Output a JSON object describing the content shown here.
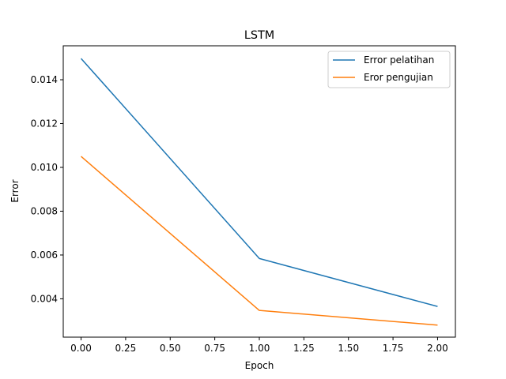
{
  "chart_data": {
    "type": "line",
    "title": "LSTM",
    "xlabel": "Epoch",
    "ylabel": "Error",
    "x": [
      0,
      1,
      2
    ],
    "xlim": [
      -0.1,
      2.1
    ],
    "ylim": [
      0.00225,
      0.01555
    ],
    "xticks": [
      0.0,
      0.25,
      0.5,
      0.75,
      1.0,
      1.25,
      1.5,
      1.75,
      2.0
    ],
    "xtick_labels": [
      "0.00",
      "0.25",
      "0.50",
      "0.75",
      "1.00",
      "1.25",
      "1.50",
      "1.75",
      "2.00"
    ],
    "yticks": [
      0.004,
      0.006,
      0.008,
      0.01,
      0.012,
      0.014
    ],
    "ytick_labels": [
      "0.004",
      "0.006",
      "0.008",
      "0.010",
      "0.012",
      "0.014"
    ],
    "legend_position": "top-right",
    "grid": false,
    "series": [
      {
        "name": "Error pelatihan",
        "color": "#1f77b4",
        "values": [
          0.01497,
          0.00584,
          0.00365
        ]
      },
      {
        "name": "Eror pengujian",
        "color": "#ff7f0e",
        "values": [
          0.0105,
          0.00347,
          0.0028
        ]
      }
    ]
  }
}
